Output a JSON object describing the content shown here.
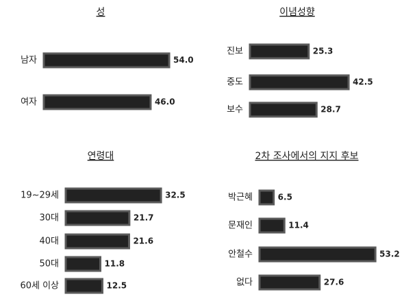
{
  "chart_data": [
    {
      "type": "bar",
      "title": "성",
      "categories": [
        "남자",
        "여자"
      ],
      "values": [
        54.0,
        46.0
      ],
      "value_labels": [
        "54.0",
        "46.0"
      ],
      "color": "#222222"
    },
    {
      "type": "bar",
      "title": "이념성향",
      "categories": [
        "진보",
        "중도",
        "보수"
      ],
      "values": [
        25.3,
        42.5,
        28.7
      ],
      "value_labels": [
        "25.3",
        "42.5",
        "28.7"
      ],
      "color": "#222222"
    },
    {
      "type": "bar",
      "title": "연령대",
      "categories": [
        "19~29세",
        "30대",
        "40대",
        "50대",
        "60세 이상"
      ],
      "values": [
        32.5,
        21.7,
        21.6,
        11.8,
        12.5
      ],
      "value_labels": [
        "32.5",
        "21.7",
        "21.6",
        "11.8",
        "12.5"
      ],
      "color": "#222222"
    },
    {
      "type": "bar",
      "title": "2차 조사에서의 지지 후보",
      "categories": [
        "박근혜",
        "문재인",
        "안철수",
        "없다"
      ],
      "values": [
        6.5,
        11.4,
        53.2,
        27.6
      ],
      "value_labels": [
        "6.5",
        "11.4",
        "53.2",
        "27.6"
      ],
      "color": "#222222"
    }
  ]
}
